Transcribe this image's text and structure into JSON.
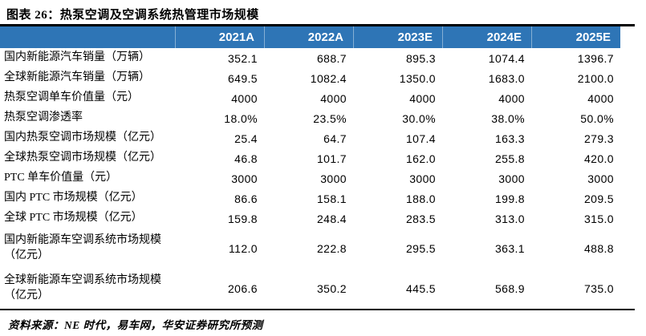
{
  "title": "图表 26：热泵空调及空调系统热管理市场规模",
  "colors": {
    "header_bg": "#2E75B6",
    "header_text": "#FFFFFF",
    "rule": "#000000",
    "body_text": "#000000"
  },
  "table": {
    "columns": [
      "2021A",
      "2022A",
      "2023E",
      "2024E",
      "2025E"
    ],
    "rows": [
      {
        "label": "国内新能源汽车销量（万辆）",
        "values": [
          "352.1",
          "688.7",
          "895.3",
          "1074.4",
          "1396.7"
        ]
      },
      {
        "label": "全球新能源汽车销量（万辆）",
        "values": [
          "649.5",
          "1082.4",
          "1350.0",
          "1683.0",
          "2100.0"
        ]
      },
      {
        "label": "热泵空调单车价值量（元）",
        "values": [
          "4000",
          "4000",
          "4000",
          "4000",
          "4000"
        ]
      },
      {
        "label": "热泵空调渗透率",
        "values": [
          "18.0%",
          "23.5%",
          "30.0%",
          "38.0%",
          "50.0%"
        ]
      },
      {
        "label": "国内热泵空调市场规模（亿元）",
        "values": [
          "25.4",
          "64.7",
          "107.4",
          "163.3",
          "279.3"
        ]
      },
      {
        "label": "全球热泵空调市场规模（亿元）",
        "values": [
          "46.8",
          "101.7",
          "162.0",
          "255.8",
          "420.0"
        ]
      },
      {
        "label": "PTC 单车价值量（元）",
        "values": [
          "3000",
          "3000",
          "3000",
          "3000",
          "3000"
        ]
      },
      {
        "label": "国内 PTC 市场规模（亿元）",
        "values": [
          "86.6",
          "158.1",
          "188.0",
          "199.8",
          "209.5"
        ]
      },
      {
        "label": "全球 PTC 市场规模（亿元）",
        "values": [
          "159.8",
          "248.4",
          "283.5",
          "313.0",
          "315.0"
        ]
      },
      {
        "label": "国内新能源车空调系统市场规模（亿元）",
        "values": [
          "112.0",
          "222.8",
          "295.5",
          "363.1",
          "488.8"
        ]
      },
      {
        "label": "全球新能源车空调系统市场规模（亿元）",
        "values": [
          "206.6",
          "350.2",
          "445.5",
          "568.9",
          "735.0"
        ]
      }
    ]
  },
  "footer": {
    "source": "资料来源：NE 时代，易车网，华安证券研究所预测"
  }
}
